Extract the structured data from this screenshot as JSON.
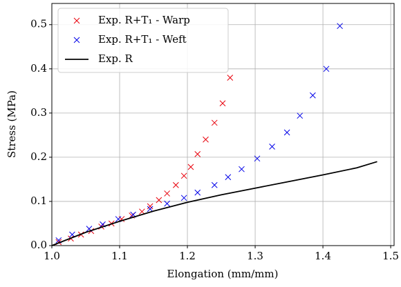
{
  "chart_data": {
    "type": "scatter",
    "xlabel": "Elongation (mm/mm)",
    "ylabel": "Stress (MPa)",
    "xlim": [
      1.0,
      1.505
    ],
    "ylim": [
      0,
      0.548
    ],
    "xticks": [
      {
        "value": 1.0,
        "label": "1.0"
      },
      1.1,
      1.2,
      1.3,
      1.4,
      1.5
    ],
    "yticks": [
      {
        "value": 0,
        "label": "0.0"
      },
      0.1,
      0.2,
      0.3,
      0.4,
      0.5
    ],
    "grid": true,
    "legend": "upper left",
    "series": [
      {
        "name": "Exp. R+T₁ - Warp",
        "type": "scatter",
        "color": "#e8000b",
        "x": [
          1.01,
          1.028,
          1.043,
          1.058,
          1.073,
          1.088,
          1.103,
          1.118,
          1.133,
          1.145,
          1.158,
          1.17,
          1.183,
          1.195,
          1.205,
          1.215,
          1.227,
          1.24,
          1.252,
          1.263
        ],
        "values": [
          0.008,
          0.016,
          0.025,
          0.033,
          0.043,
          0.05,
          0.06,
          0.068,
          0.077,
          0.089,
          0.103,
          0.118,
          0.137,
          0.158,
          0.178,
          0.207,
          0.24,
          0.278,
          0.322,
          0.38
        ]
      },
      {
        "name": "Exp. R+T₁ - Weft",
        "type": "scatter",
        "color": "#0000e8",
        "x": [
          1.01,
          1.03,
          1.055,
          1.075,
          1.098,
          1.12,
          1.145,
          1.17,
          1.195,
          1.215,
          1.24,
          1.26,
          1.28,
          1.303,
          1.325,
          1.347,
          1.366,
          1.385,
          1.405,
          1.425
        ],
        "values": [
          0.012,
          0.025,
          0.038,
          0.048,
          0.06,
          0.07,
          0.083,
          0.095,
          0.108,
          0.12,
          0.137,
          0.155,
          0.173,
          0.197,
          0.224,
          0.256,
          0.294,
          0.34,
          0.4,
          0.497
        ]
      },
      {
        "name": "Exp. R",
        "type": "line",
        "color": "#000000",
        "x": [
          1.0,
          1.05,
          1.1,
          1.15,
          1.2,
          1.25,
          1.3,
          1.35,
          1.4,
          1.45,
          1.48
        ],
        "values": [
          0,
          0.03,
          0.055,
          0.078,
          0.098,
          0.115,
          0.13,
          0.145,
          0.16,
          0.176,
          0.19
        ]
      }
    ]
  }
}
